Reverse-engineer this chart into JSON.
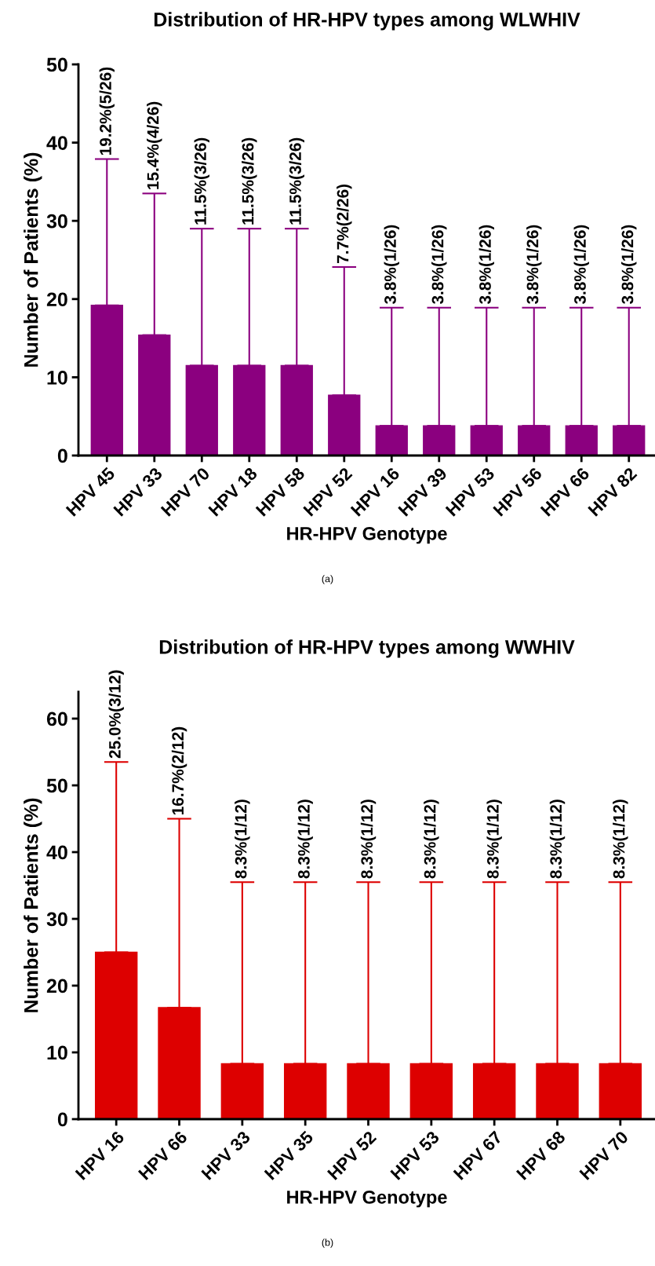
{
  "chart_data": [
    {
      "type": "bar",
      "title": "Distribution of HR-HPV types among WLWHIV",
      "xlabel": "HR-HPV Genotype",
      "ylabel": "Number of Patients (%)",
      "categories": [
        "HPV 45",
        "HPV 33",
        "HPV 70",
        "HPV 18",
        "HPV 58",
        "HPV 52",
        "HPV 16",
        "HPV 39",
        "HPV 53",
        "HPV 56",
        "HPV 66",
        "HPV 82"
      ],
      "values": [
        19.2,
        15.4,
        11.5,
        11.5,
        11.5,
        7.7,
        3.8,
        3.8,
        3.8,
        3.8,
        3.8,
        3.8
      ],
      "errors": [
        [
          19.2,
          37.9
        ],
        [
          15.4,
          33.5
        ],
        [
          11.5,
          29.0
        ],
        [
          11.5,
          29.0
        ],
        [
          11.5,
          29.0
        ],
        [
          7.7,
          24.1
        ],
        [
          3.8,
          18.9
        ],
        [
          3.8,
          18.9
        ],
        [
          3.8,
          18.9
        ],
        [
          3.8,
          18.9
        ],
        [
          3.8,
          18.9
        ],
        [
          3.8,
          18.9
        ]
      ],
      "color": "#8b007f",
      "ylim": [
        0,
        50
      ],
      "yticks": [
        0,
        10,
        20,
        30,
        40,
        50
      ],
      "grid": false,
      "legend": false,
      "annotations": [
        {
          "text": "19.2%(5/26)",
          "x": "HPV 45",
          "y": 37.9
        },
        {
          "text": "15.4%(4/26)",
          "x": "HPV 33",
          "y": 33.5
        },
        {
          "text": "11.5%(3/26)",
          "x": "HPV 70",
          "y": 29.0
        },
        {
          "text": "11.5%(3/26)",
          "x": "HPV 18",
          "y": 29.0
        },
        {
          "text": "11.5%(3/26)",
          "x": "HPV 58",
          "y": 29.0
        },
        {
          "text": "7.7%(2/26)",
          "x": "HPV 52",
          "y": 24.1
        },
        {
          "text": "3.8%(1/26)",
          "x": "HPV 16",
          "y": 18.9
        },
        {
          "text": "3.8%(1/26)",
          "x": "HPV 39",
          "y": 18.9
        },
        {
          "text": "3.8%(1/26)",
          "x": "HPV 53",
          "y": 18.9
        },
        {
          "text": "3.8%(1/26)",
          "x": "HPV 56",
          "y": 18.9
        },
        {
          "text": "3.8%(1/26)",
          "x": "HPV 66",
          "y": 18.9
        },
        {
          "text": "3.8%(1/26)",
          "x": "HPV 82",
          "y": 18.9
        },
        "(a)"
      ]
    },
    {
      "type": "bar",
      "title": "Distribution of HR-HPV types among WWHIV",
      "xlabel": "HR-HPV Genotype",
      "ylabel": "Number of Patients (%)",
      "categories": [
        "HPV 16",
        "HPV 66",
        "HPV 33",
        "HPV 35",
        "HPV 52",
        "HPV 53",
        "HPV 67",
        "HPV 68",
        "HPV 70"
      ],
      "values": [
        25.0,
        16.7,
        8.3,
        8.3,
        8.3,
        8.3,
        8.3,
        8.3,
        8.3
      ],
      "errors": [
        [
          25.0,
          53.5
        ],
        [
          16.7,
          45.0
        ],
        [
          8.3,
          35.5
        ],
        [
          8.3,
          35.5
        ],
        [
          8.3,
          35.5
        ],
        [
          8.3,
          35.5
        ],
        [
          8.3,
          35.5
        ],
        [
          8.3,
          35.5
        ],
        [
          8.3,
          35.5
        ]
      ],
      "color": "#dd0000",
      "ylim": [
        0,
        64
      ],
      "yticks": [
        0,
        10,
        20,
        30,
        40,
        50,
        60
      ],
      "grid": false,
      "legend": false,
      "annotations": [
        {
          "text": "25.0%(3/12)",
          "x": "HPV 16",
          "y": 53.5
        },
        {
          "text": "16.7%(2/12)",
          "x": "HPV 66",
          "y": 45.0
        },
        {
          "text": "8.3%(1/12)",
          "x": "HPV 33",
          "y": 35.5
        },
        {
          "text": "8.3%(1/12)",
          "x": "HPV 35",
          "y": 35.5
        },
        {
          "text": "8.3%(1/12)",
          "x": "HPV 52",
          "y": 35.5
        },
        {
          "text": "8.3%(1/12)",
          "x": "HPV 53",
          "y": 35.5
        },
        {
          "text": "8.3%(1/12)",
          "x": "HPV 67",
          "y": 35.5
        },
        {
          "text": "8.3%(1/12)",
          "x": "HPV 68",
          "y": 35.5
        },
        {
          "text": "8.3%(1/12)",
          "x": "HPV 70",
          "y": 35.5
        },
        "(b)"
      ]
    }
  ]
}
